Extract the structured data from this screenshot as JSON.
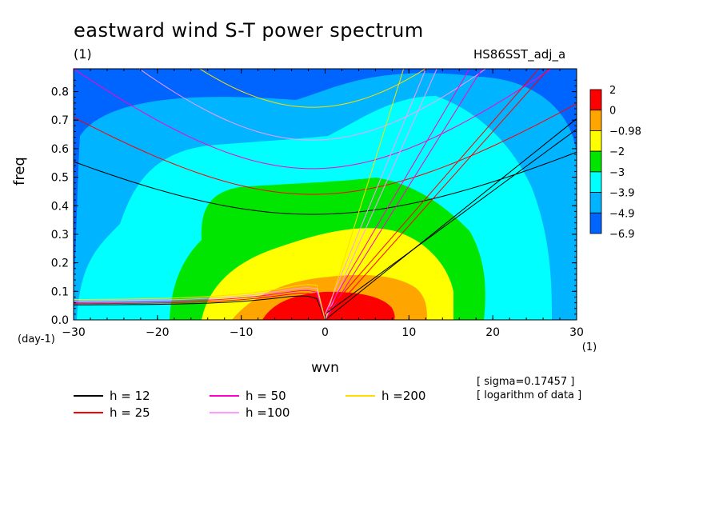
{
  "header": {
    "title": "eastward wind S-T power spectrum",
    "subtitle_left": "(1)",
    "subtitle_right": "HS86SST_adj_a"
  },
  "notes": [
    "[ sigma=0.17457 ]",
    "[ logarithm of data ]"
  ],
  "chart_data": {
    "type": "heatmap",
    "title": "eastward wind S-T power spectrum",
    "xlabel": "wvn",
    "ylabel": "freq",
    "x_unit": "(1)",
    "y_unit": "(day-1)",
    "xlim": [
      -30,
      30
    ],
    "ylim": [
      0,
      0.88
    ],
    "x_ticks": [
      -30,
      -20,
      -10,
      0,
      10,
      20,
      30
    ],
    "y_ticks": [
      0.0,
      0.1,
      0.2,
      0.3,
      0.4,
      0.5,
      0.6,
      0.7,
      0.8
    ],
    "colorbar": {
      "labels": [
        "2",
        "0",
        "-0.98",
        "-2",
        "-3",
        "-3.9",
        "-4.9",
        "-6.9"
      ],
      "colors": [
        "#ff0000",
        "#ffa500",
        "#ffff00",
        "#00e600",
        "#00ffff",
        "#00b4ff",
        "#0064ff"
      ]
    },
    "dispersion_curves": [
      {
        "name": "h = 12",
        "color": "#000000"
      },
      {
        "name": "h = 25",
        "color": "#ff0000"
      },
      {
        "name": "h = 50",
        "color": "#ff00c8"
      },
      {
        "name": "h =100",
        "color": "#ff99ff"
      },
      {
        "name": "h =200",
        "color": "#ffdd00"
      }
    ]
  }
}
